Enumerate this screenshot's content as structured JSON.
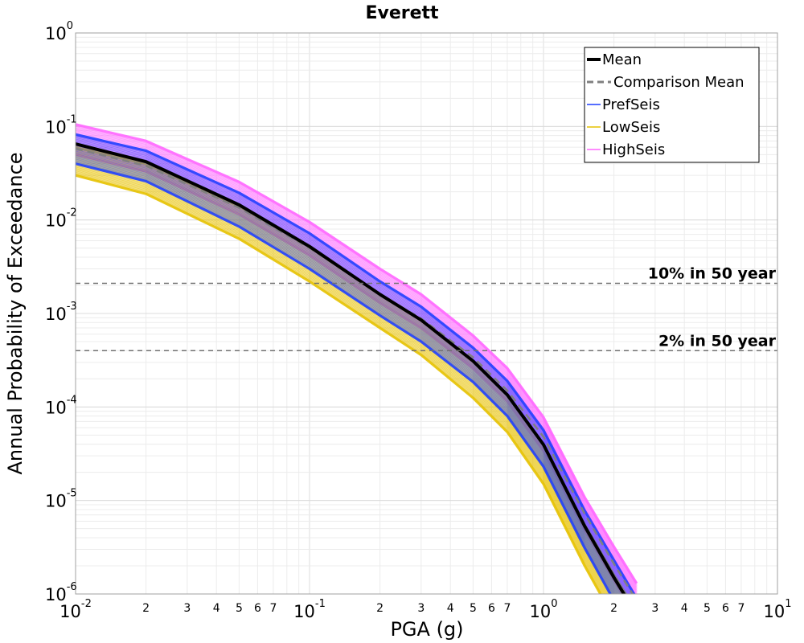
{
  "chart_data": {
    "type": "line",
    "title": "Everett",
    "xlabel": "PGA (g)",
    "ylabel": "Annual Probability of Exceedance",
    "x_scale": "log",
    "y_scale": "log",
    "xlim": [
      0.01,
      10
    ],
    "ylim": [
      1e-06,
      1
    ],
    "grid": true,
    "legend_position": "top-right",
    "x_ticks": [
      {
        "base": "10",
        "exp": "-2"
      },
      {
        "base": "10",
        "exp": "-1"
      },
      {
        "base": "10",
        "exp": "0"
      },
      {
        "base": "10",
        "exp": "1"
      }
    ],
    "y_ticks": [
      {
        "base": "10",
        "exp": "0"
      },
      {
        "base": "10",
        "exp": "-1"
      },
      {
        "base": "10",
        "exp": "-2"
      },
      {
        "base": "10",
        "exp": "-3"
      },
      {
        "base": "10",
        "exp": "-4"
      },
      {
        "base": "10",
        "exp": "-5"
      },
      {
        "base": "10",
        "exp": "-6"
      }
    ],
    "x_minor_tick_labels": [
      "2",
      "3",
      "4",
      "5",
      "6",
      "7"
    ],
    "reference_lines": [
      {
        "label": "10% in 50 year",
        "y": 0.0021
      },
      {
        "label": "2% in 50 year",
        "y": 0.0004
      }
    ],
    "series": [
      {
        "name": "Mean",
        "color": "#000000",
        "style": "solid",
        "x": [
          0.01,
          0.02,
          0.05,
          0.1,
          0.2,
          0.3,
          0.5,
          0.7,
          1.0,
          1.5,
          2.0,
          2.5
        ],
        "y": [
          0.065,
          0.042,
          0.0145,
          0.0052,
          0.0016,
          0.00085,
          0.00031,
          0.000135,
          3.95e-05,
          5.3e-06,
          1.5e-06,
          6e-07
        ]
      },
      {
        "name": "Comparison Mean",
        "color": "#808080",
        "style": "dashed",
        "x": [
          0.01,
          0.02,
          0.05,
          0.1,
          0.2,
          0.3,
          0.5,
          0.7,
          1.0,
          1.5,
          2.0,
          2.5
        ],
        "y": [
          0.058,
          0.038,
          0.0135,
          0.005,
          0.0016,
          0.00088,
          0.00034,
          0.00015,
          4.8e-05,
          7.2e-06,
          2.1e-06,
          8.5e-07
        ]
      },
      {
        "name": "PrefSeis",
        "color": "#1f3fff",
        "style": "band",
        "x": [
          0.01,
          0.02,
          0.05,
          0.1,
          0.2,
          0.3,
          0.5,
          0.7,
          1.0,
          1.5,
          2.0,
          2.5
        ],
        "y_low": [
          0.04,
          0.026,
          0.0085,
          0.003,
          0.00095,
          0.0005,
          0.000185,
          8e-05,
          2.3e-05,
          3.1e-06,
          8.5e-07,
          3.5e-07
        ],
        "y_high": [
          0.082,
          0.055,
          0.0195,
          0.0072,
          0.0022,
          0.00118,
          0.00043,
          0.00019,
          5.65e-05,
          7.8e-06,
          2.3e-06,
          9e-07
        ]
      },
      {
        "name": "LowSeis",
        "color": "#e6c200",
        "style": "band",
        "x": [
          0.01,
          0.02,
          0.05,
          0.1,
          0.2,
          0.3,
          0.5,
          0.7,
          1.0,
          1.5,
          2.0,
          2.5
        ],
        "y_low": [
          0.03,
          0.019,
          0.0063,
          0.0022,
          0.0007,
          0.00036,
          0.000125,
          5.4e-05,
          1.5e-05,
          2e-06,
          5.5e-07,
          2.2e-07
        ],
        "y_high": [
          0.06,
          0.04,
          0.014,
          0.0052,
          0.0016,
          0.00085,
          0.00031,
          0.000135,
          4e-05,
          5.5e-06,
          1.6e-06,
          6.5e-07
        ]
      },
      {
        "name": "HighSeis",
        "color": "#ff66ff",
        "style": "band",
        "x": [
          0.01,
          0.02,
          0.05,
          0.1,
          0.2,
          0.3,
          0.5,
          0.7,
          1.0,
          1.5,
          2.0,
          2.5
        ],
        "y_low": [
          0.05,
          0.033,
          0.0115,
          0.0042,
          0.0013,
          0.0007,
          0.00026,
          0.000115,
          3.4e-05,
          4.8e-06,
          1.4e-06,
          5.5e-07
        ],
        "y_high": [
          0.105,
          0.07,
          0.0255,
          0.0095,
          0.003,
          0.0016,
          0.00058,
          0.00026,
          7.75e-05,
          1.08e-05,
          3.2e-06,
          1.3e-06
        ]
      }
    ]
  }
}
